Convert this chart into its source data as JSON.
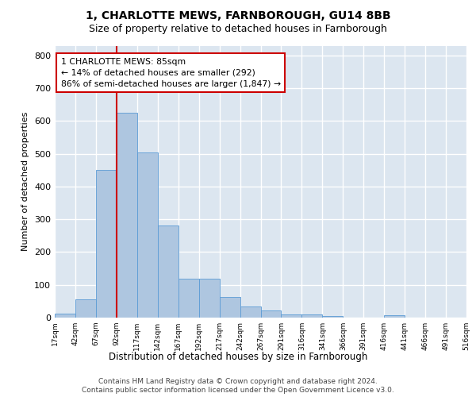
{
  "title": "1, CHARLOTTE MEWS, FARNBOROUGH, GU14 8BB",
  "subtitle": "Size of property relative to detached houses in Farnborough",
  "xlabel": "Distribution of detached houses by size in Farnborough",
  "ylabel": "Number of detached properties",
  "bar_color": "#aec6e0",
  "bar_edge_color": "#5b9bd5",
  "background_color": "#dce6f0",
  "grid_color": "#ffffff",
  "bin_labels": [
    "17sqm",
    "42sqm",
    "67sqm",
    "92sqm",
    "117sqm",
    "142sqm",
    "167sqm",
    "192sqm",
    "217sqm",
    "242sqm",
    "267sqm",
    "291sqm",
    "316sqm",
    "341sqm",
    "366sqm",
    "391sqm",
    "416sqm",
    "441sqm",
    "466sqm",
    "491sqm",
    "516sqm"
  ],
  "values": [
    12,
    55,
    450,
    625,
    505,
    280,
    118,
    118,
    62,
    35,
    22,
    10,
    10,
    5,
    0,
    0,
    8,
    0,
    0,
    0
  ],
  "annotation_text": "1 CHARLOTTE MEWS: 85sqm\n← 14% of detached houses are smaller (292)\n86% of semi-detached houses are larger (1,847) →",
  "annotation_box_color": "#ffffff",
  "annotation_box_edge": "#cc0000",
  "vline_color": "#cc0000",
  "vline_index": 2.5,
  "ylim": [
    0,
    830
  ],
  "yticks": [
    0,
    100,
    200,
    300,
    400,
    500,
    600,
    700,
    800
  ],
  "footer_line1": "Contains HM Land Registry data © Crown copyright and database right 2024.",
  "footer_line2": "Contains public sector information licensed under the Open Government Licence v3.0."
}
